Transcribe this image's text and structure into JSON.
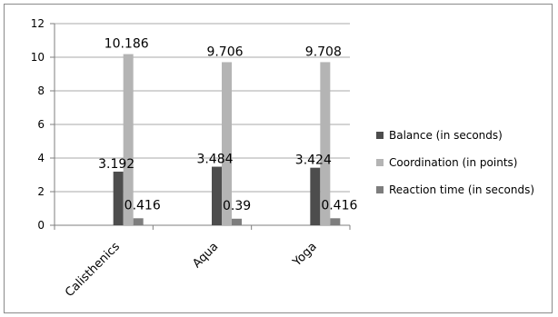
{
  "chart_data": {
    "type": "bar",
    "title": "",
    "xlabel": "",
    "ylabel": "",
    "categories": [
      "Calisthenics",
      "Aqua",
      "Yoga"
    ],
    "ylim": [
      0,
      12
    ],
    "yticks": [
      "0",
      "2",
      "4",
      "6",
      "8",
      "10",
      "12"
    ],
    "grid": true,
    "legend_position": "right",
    "series": [
      {
        "name": "Balance (in seconds)",
        "color": "#4d4d4d",
        "values": [
          3.192,
          3.484,
          3.424
        ],
        "labels": [
          "3.192",
          "3.484",
          "3.424"
        ]
      },
      {
        "name": "Coordination (in points)",
        "color": "#b4b4b4",
        "values": [
          10.186,
          9.706,
          9.708
        ],
        "labels": [
          "10.186",
          "9.706",
          "9.708"
        ]
      },
      {
        "name": "Reaction time (in seconds)",
        "color": "#7d7d7d",
        "values": [
          0.416,
          0.39,
          0.416
        ],
        "labels": [
          "0.416",
          "0.39",
          "0.416"
        ]
      }
    ]
  }
}
